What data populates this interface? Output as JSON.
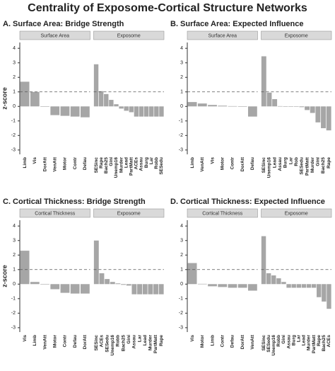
{
  "title": "Centrality of Exposome-Cortical Structure Networks",
  "chart_data": [
    {
      "type": "bar",
      "title": "A. Surface Area: Bridge Strength",
      "ylabel": "z-score",
      "color": "#a6a6a6",
      "ylim": [
        -3.3,
        4.4
      ],
      "yticks": [
        -3,
        -2,
        -1,
        0,
        1,
        2,
        3,
        4
      ],
      "hline": 1,
      "facets": [
        {
          "name": "Surface Area",
          "categories": [
            "Limb",
            "Vis",
            "DorAtt",
            "VenAtt",
            "Motor",
            "Contr",
            "Defau"
          ],
          "values": [
            1.7,
            1.0,
            -0.02,
            -0.6,
            -0.65,
            -0.7,
            -0.75
          ]
        },
        {
          "name": "Exposome",
          "categories": [
            "SESinc",
            "Rape",
            "Bach25",
            "Gini",
            "Unemp16",
            "Murder",
            "Lead",
            "PartMatt",
            "ACEs",
            "Assau",
            "Burg",
            "Lar",
            "Robb",
            "SESedu"
          ],
          "values": [
            2.9,
            1.05,
            0.85,
            0.45,
            0.15,
            -0.15,
            -0.3,
            -0.4,
            -0.7,
            -0.7,
            -0.7,
            -0.7,
            -0.7,
            -0.7
          ]
        }
      ]
    },
    {
      "type": "bar",
      "title": "B. Surface Area: Expected Influence",
      "color": "#a6a6a6",
      "ylim": [
        -3.3,
        4.4
      ],
      "yticks": [
        -3,
        -2,
        -1,
        0,
        1,
        2,
        3,
        4
      ],
      "hline": 1,
      "facets": [
        {
          "name": "Surface Area",
          "categories": [
            "Limb",
            "VenAtt",
            "Vis",
            "Motor",
            "Contr",
            "DorAtt",
            "Defau"
          ],
          "values": [
            0.3,
            0.2,
            0.1,
            0.05,
            0.02,
            0.0,
            -0.7
          ]
        },
        {
          "name": "Exposome",
          "categories": [
            "SESinc",
            "Unemp16",
            "Lead",
            "Assau",
            "Burg",
            "Lar",
            "Rob",
            "SESedu",
            "PartMatt",
            "Murder",
            "Gini",
            "Bach25",
            "Rape"
          ],
          "values": [
            3.45,
            0.95,
            0.5,
            0.02,
            0.0,
            0.0,
            0.0,
            -0.05,
            -0.25,
            -0.45,
            -1.1,
            -1.5,
            -1.65
          ]
        }
      ]
    },
    {
      "type": "bar",
      "title": "C. Cortical Thickness: Bridge Strength",
      "ylabel": "z-score",
      "color": "#a6a6a6",
      "ylim": [
        -3.3,
        4.4
      ],
      "yticks": [
        -3,
        -2,
        -1,
        0,
        1,
        2,
        3,
        4
      ],
      "hline": 1,
      "facets": [
        {
          "name": "Cortical Thickness",
          "categories": [
            "Vis",
            "Limb",
            "VenAtt",
            "Motor",
            "Contr",
            "Defau",
            "DorAtt"
          ],
          "values": [
            2.3,
            0.15,
            0.0,
            -0.35,
            -0.6,
            -0.65,
            -0.65
          ]
        },
        {
          "name": "Exposome",
          "categories": [
            "SESinc",
            "ACEs",
            "SESedu",
            "Unemp16",
            "Robb",
            "Bach25",
            "Gini",
            "Assau",
            "Lar",
            "Lead",
            "Murder",
            "PartMatt",
            "Rape"
          ],
          "values": [
            3.0,
            0.75,
            0.35,
            0.15,
            0.05,
            -0.05,
            -0.1,
            -0.7,
            -0.7,
            -0.7,
            -0.7,
            -0.7,
            -0.7
          ]
        }
      ]
    },
    {
      "type": "bar",
      "title": "D. Cortical Thickness: Expected Influence",
      "color": "#a6a6a6",
      "ylim": [
        -3.3,
        4.4
      ],
      "yticks": [
        -3,
        -2,
        -1,
        0,
        1,
        2,
        3,
        4
      ],
      "hline": 1,
      "facets": [
        {
          "name": "Cortical Thickness",
          "categories": [
            "Vis",
            "Motor",
            "Limb",
            "Contr",
            "Defau",
            "DorAtt",
            "VenAtt"
          ],
          "values": [
            1.45,
            0.02,
            -0.15,
            -0.2,
            -0.25,
            -0.25,
            -0.45
          ]
        },
        {
          "name": "Exposome",
          "categories": [
            "SESinc",
            "SESedu",
            "Unemp16",
            "Robb",
            "Gini",
            "Assau",
            "Burg",
            "Lar",
            "Lead",
            "Murder",
            "PartMatt",
            "Rape",
            "Bach25",
            "ACEs"
          ],
          "values": [
            3.3,
            0.75,
            0.6,
            0.4,
            0.15,
            -0.25,
            -0.25,
            -0.25,
            -0.25,
            -0.25,
            -0.25,
            -0.9,
            -1.2,
            -1.7
          ]
        }
      ]
    }
  ]
}
